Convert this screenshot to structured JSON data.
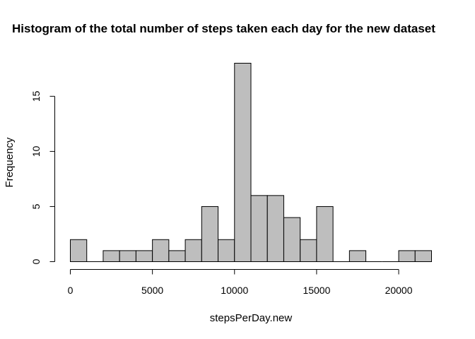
{
  "chart_data": {
    "type": "bar",
    "title": "Histogram of the total number of steps taken each day for the new dataset",
    "xlabel": "stepsPerDay.new",
    "ylabel": "Frequency",
    "bin_width": 1000,
    "bins": [
      {
        "x0": 0,
        "x1": 1000,
        "count": 2
      },
      {
        "x0": 1000,
        "x1": 2000,
        "count": 0
      },
      {
        "x0": 2000,
        "x1": 3000,
        "count": 1
      },
      {
        "x0": 3000,
        "x1": 4000,
        "count": 1
      },
      {
        "x0": 4000,
        "x1": 5000,
        "count": 1
      },
      {
        "x0": 5000,
        "x1": 6000,
        "count": 2
      },
      {
        "x0": 6000,
        "x1": 7000,
        "count": 1
      },
      {
        "x0": 7000,
        "x1": 8000,
        "count": 2
      },
      {
        "x0": 8000,
        "x1": 9000,
        "count": 5
      },
      {
        "x0": 9000,
        "x1": 10000,
        "count": 2
      },
      {
        "x0": 10000,
        "x1": 11000,
        "count": 18
      },
      {
        "x0": 11000,
        "x1": 12000,
        "count": 6
      },
      {
        "x0": 12000,
        "x1": 13000,
        "count": 6
      },
      {
        "x0": 13000,
        "x1": 14000,
        "count": 4
      },
      {
        "x0": 14000,
        "x1": 15000,
        "count": 2
      },
      {
        "x0": 15000,
        "x1": 16000,
        "count": 5
      },
      {
        "x0": 16000,
        "x1": 17000,
        "count": 0
      },
      {
        "x0": 17000,
        "x1": 18000,
        "count": 1
      },
      {
        "x0": 18000,
        "x1": 19000,
        "count": 0
      },
      {
        "x0": 19000,
        "x1": 20000,
        "count": 0
      },
      {
        "x0": 20000,
        "x1": 21000,
        "count": 1
      },
      {
        "x0": 21000,
        "x1": 22000,
        "count": 1
      }
    ],
    "xticks": [
      0,
      5000,
      10000,
      15000,
      20000
    ],
    "yticks": [
      0,
      5,
      10,
      15
    ],
    "xlim": [
      0,
      22000
    ],
    "ylim": [
      0,
      18
    ],
    "grid": false,
    "bar_color": "#bebebe",
    "edge_color": "#000000"
  }
}
